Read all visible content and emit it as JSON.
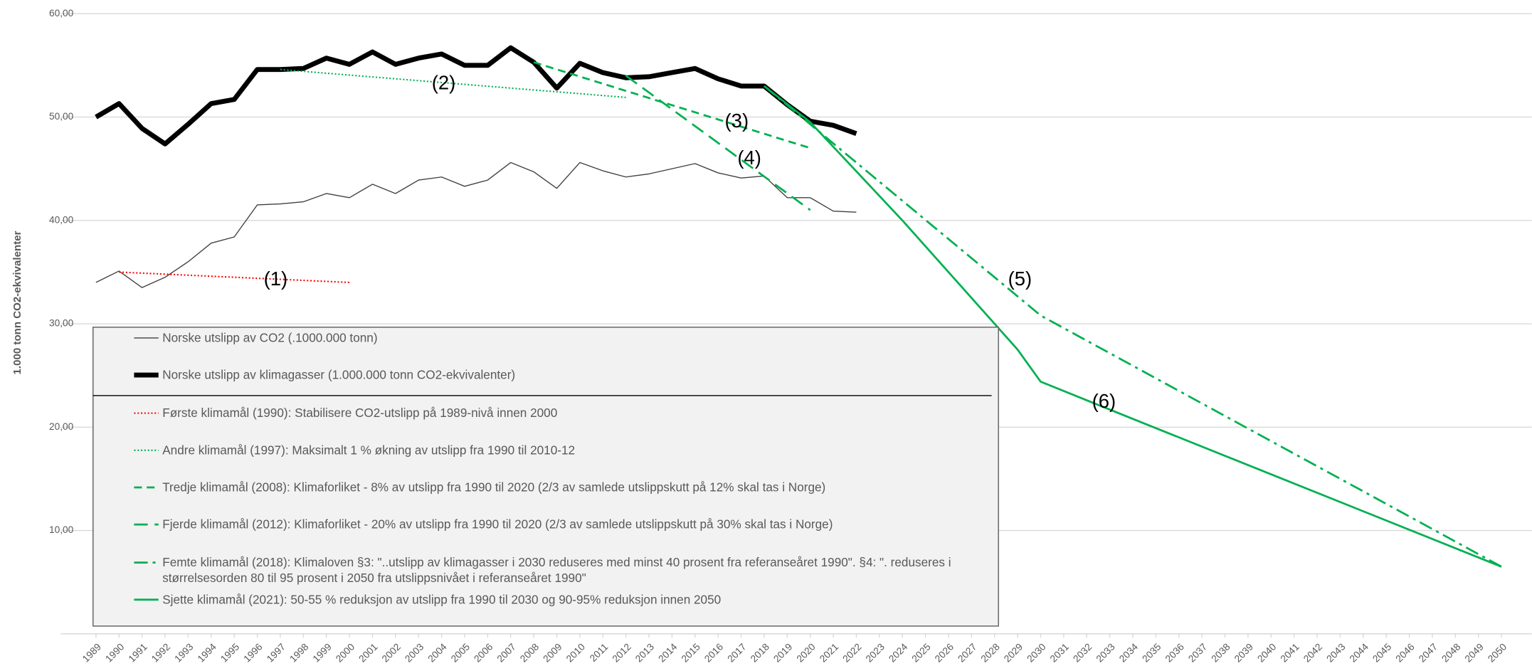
{
  "chart_data": {
    "type": "line",
    "y_label": "1.000 tonn CO2-ekvivalenter",
    "xlim": [
      1989,
      2050
    ],
    "xticks": [
      1989,
      1990,
      1991,
      1992,
      1993,
      1994,
      1995,
      1996,
      1997,
      1998,
      1999,
      2000,
      2001,
      2002,
      2003,
      2004,
      2005,
      2006,
      2007,
      2008,
      2009,
      2010,
      2011,
      2012,
      2013,
      2014,
      2015,
      2016,
      2017,
      2018,
      2019,
      2020,
      2021,
      2022,
      2023,
      2024,
      2025,
      2026,
      2027,
      2028,
      2029,
      2030,
      2031,
      2032,
      2033,
      2034,
      2035,
      2036,
      2037,
      2038,
      2039,
      2040,
      2041,
      2042,
      2043,
      2044,
      2045,
      2046,
      2047,
      2048,
      2049,
      2050
    ],
    "ylim": [
      0,
      60
    ],
    "yticks": [
      {
        "value": 0,
        "label": "-"
      },
      {
        "value": 10,
        "label": "10,00"
      },
      {
        "value": 20,
        "label": "20,00"
      },
      {
        "value": 30,
        "label": "30,00"
      },
      {
        "value": 40,
        "label": "40,00"
      },
      {
        "value": 50,
        "label": "50,00"
      },
      {
        "value": 60,
        "label": "60,00"
      }
    ],
    "grid": true,
    "series": [
      {
        "name": "Norske utslipp av CO2 (.1000.000 tonn)",
        "color": "#404040",
        "width": 1,
        "dash": "solid",
        "x": [
          1989,
          1990,
          1991,
          1992,
          1993,
          1994,
          1995,
          1996,
          1997,
          1998,
          1999,
          2000,
          2001,
          2002,
          2003,
          2004,
          2005,
          2006,
          2007,
          2008,
          2009,
          2010,
          2011,
          2012,
          2013,
          2014,
          2015,
          2016,
          2017,
          2018,
          2019,
          2020,
          2021,
          2022
        ],
        "values": [
          34.0,
          35.1,
          33.5,
          34.5,
          36.0,
          37.8,
          38.4,
          41.5,
          41.6,
          41.8,
          42.6,
          42.2,
          43.5,
          42.6,
          43.9,
          44.2,
          43.3,
          43.9,
          45.6,
          44.7,
          43.1,
          45.6,
          44.8,
          44.2,
          44.5,
          45.0,
          45.5,
          44.6,
          44.1,
          44.3,
          42.2,
          42.2,
          40.9,
          40.8
        ]
      },
      {
        "name": "Norske utslipp av klimagasser (1.000.000 tonn CO2-ekvivalenter)",
        "color": "#000000",
        "width": 5,
        "dash": "solid",
        "x": [
          1989,
          1990,
          1991,
          1992,
          1993,
          1994,
          1995,
          1996,
          1997,
          1998,
          1999,
          2000,
          2001,
          2002,
          2003,
          2004,
          2005,
          2006,
          2007,
          2008,
          2009,
          2010,
          2011,
          2012,
          2013,
          2014,
          2015,
          2016,
          2017,
          2018,
          2019,
          2020,
          2021,
          2022
        ],
        "values": [
          50.0,
          51.3,
          48.9,
          47.4,
          49.3,
          51.3,
          51.7,
          54.6,
          54.6,
          54.7,
          55.7,
          55.1,
          56.3,
          55.1,
          55.7,
          56.1,
          55.0,
          55.0,
          56.7,
          55.3,
          52.8,
          55.2,
          54.3,
          53.8,
          53.9,
          54.3,
          54.7,
          53.7,
          53.0,
          53.0,
          51.2,
          49.6,
          49.2,
          48.4
        ]
      },
      {
        "name": "Første klimamål (1990): Stabilisere CO2-utslipp på 1989-nivå innen 2000",
        "color": "#ff0000",
        "width": 1.5,
        "dash": "dotted",
        "x": [
          1990,
          2000
        ],
        "values": [
          35.0,
          34.0
        ]
      },
      {
        "name": "Andre klimamål (1997): Maksimalt 1 % økning av utslipp fra 1990 til 2010-12",
        "color": "#00b050",
        "width": 1.5,
        "dash": "dotted",
        "x": [
          1997,
          2012
        ],
        "values": [
          54.6,
          51.9
        ]
      },
      {
        "name": "Tredje klimamål (2008): Klimaforliket - 8% av utslipp fra 1990 til 2020 (2/3 av samlede utslippskutt på 12% skal tas i Norge)",
        "color": "#00b050",
        "width": 2,
        "dash": "dashed",
        "x": [
          2008,
          2020
        ],
        "values": [
          55.3,
          47.0
        ]
      },
      {
        "name": "Fjerde klimamål (2012): Klimaforliket - 20% av utslipp fra 1990 til 2020 (2/3 av samlede utslippskutt på 30% skal tas i Norge)",
        "color": "#00b050",
        "width": 2,
        "dash": "longdash",
        "x": [
          2012,
          2020
        ],
        "values": [
          54.0,
          41.0
        ]
      },
      {
        "name": "Femte klimamål (2018): Klimaloven §3: \"..utslipp av klimagasser i 2030 reduseres med minst 40 prosent fra referanseåret 1990\".  §4: \". reduseres i størrelsesorden 80 til 95 prosent i 2050 fra utslippsnivået i referanseåret 1990\"",
        "color": "#00b050",
        "width": 2,
        "dash": "dashdot",
        "x": [
          2018,
          2030,
          2050
        ],
        "values": [
          53.0,
          30.8,
          6.5
        ]
      },
      {
        "name": "Sjette klimamål (2021): 50-55 % reduksjon av utslipp fra 1990 til 2030 og 90-95% reduksjon innen 2050",
        "color": "#00b050",
        "width": 2,
        "dash": "solid",
        "x": [
          2018,
          2020,
          2024,
          2029,
          2030,
          2034,
          2050
        ],
        "values": [
          53.0,
          49.5,
          40.0,
          27.5,
          24.4,
          20.8,
          6.5
        ]
      }
    ],
    "annotations": [
      "(1)",
      "(2)",
      "(3)",
      "(4)",
      "(5)",
      "(6)"
    ]
  }
}
